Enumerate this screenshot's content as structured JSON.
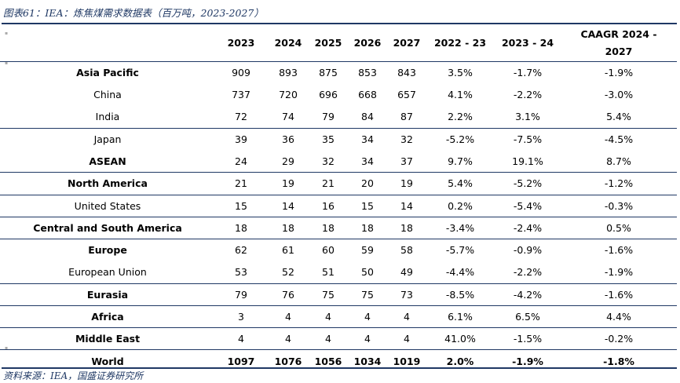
{
  "caption": "图表61：IEA：炼焦煤需求数据表（百万吨，2023-2027）",
  "source": "资料来源：IEA，国盛证券研究所",
  "columns": {
    "c2023": "2023",
    "c2024": "2024",
    "c2025": "2025",
    "c2026": "2026",
    "c2027": "2027",
    "g2223": "2022 - 23",
    "g2324": "2023 - 24",
    "caagr_line1": "CAAGR 2024 -",
    "caagr_line2": "2027"
  },
  "rows": [
    {
      "region": "Asia Pacific",
      "v2023": "909",
      "v2024": "893",
      "v2025": "875",
      "v2026": "853",
      "v2027": "843",
      "g2223": "3.5%",
      "g2324": "-1.7%",
      "caagr": "-1.9%"
    },
    {
      "region": "China",
      "v2023": "737",
      "v2024": "720",
      "v2025": "696",
      "v2026": "668",
      "v2027": "657",
      "g2223": "4.1%",
      "g2324": "-2.2%",
      "caagr": "-3.0%"
    },
    {
      "region": "India",
      "v2023": "72",
      "v2024": "74",
      "v2025": "79",
      "v2026": "84",
      "v2027": "87",
      "g2223": "2.2%",
      "g2324": "3.1%",
      "caagr": "5.4%"
    },
    {
      "region": "Japan",
      "v2023": "39",
      "v2024": "36",
      "v2025": "35",
      "v2026": "34",
      "v2027": "32",
      "g2223": "-5.2%",
      "g2324": "-7.5%",
      "caagr": "-4.5%"
    },
    {
      "region": "ASEAN",
      "v2023": "24",
      "v2024": "29",
      "v2025": "32",
      "v2026": "34",
      "v2027": "37",
      "g2223": "9.7%",
      "g2324": "19.1%",
      "caagr": "8.7%"
    },
    {
      "region": "North America",
      "v2023": "21",
      "v2024": "19",
      "v2025": "21",
      "v2026": "20",
      "v2027": "19",
      "g2223": "5.4%",
      "g2324": "-5.2%",
      "caagr": "-1.2%"
    },
    {
      "region": "United States",
      "v2023": "15",
      "v2024": "14",
      "v2025": "16",
      "v2026": "15",
      "v2027": "14",
      "g2223": "0.2%",
      "g2324": "-5.4%",
      "caagr": "-0.3%"
    },
    {
      "region": "Central and South America",
      "v2023": "18",
      "v2024": "18",
      "v2025": "18",
      "v2026": "18",
      "v2027": "18",
      "g2223": "-3.4%",
      "g2324": "-2.4%",
      "caagr": "0.5%"
    },
    {
      "region": "Europe",
      "v2023": "62",
      "v2024": "61",
      "v2025": "60",
      "v2026": "59",
      "v2027": "58",
      "g2223": "-5.7%",
      "g2324": "-0.9%",
      "caagr": "-1.6%"
    },
    {
      "region": "European Union",
      "v2023": "53",
      "v2024": "52",
      "v2025": "51",
      "v2026": "50",
      "v2027": "49",
      "g2223": "-4.4%",
      "g2324": "-2.2%",
      "caagr": "-1.9%"
    },
    {
      "region": "Eurasia",
      "v2023": "79",
      "v2024": "76",
      "v2025": "75",
      "v2026": "75",
      "v2027": "73",
      "g2223": "-8.5%",
      "g2324": "-4.2%",
      "caagr": "-1.6%"
    },
    {
      "region": "Africa",
      "v2023": "3",
      "v2024": "4",
      "v2025": "4",
      "v2026": "4",
      "v2027": "4",
      "g2223": "6.1%",
      "g2324": "6.5%",
      "caagr": "4.4%"
    },
    {
      "region": "Middle East",
      "v2023": "4",
      "v2024": "4",
      "v2025": "4",
      "v2026": "4",
      "v2027": "4",
      "g2223": "41.0%",
      "g2324": "-1.5%",
      "caagr": "-0.2%"
    },
    {
      "region": "World",
      "v2023": "1097",
      "v2024": "1076",
      "v2025": "1056",
      "v2026": "1034",
      "v2027": "1019",
      "g2223": "2.0%",
      "g2324": "-1.9%",
      "caagr": "-1.8%"
    }
  ],
  "colors": {
    "accent": "#1f3864"
  }
}
